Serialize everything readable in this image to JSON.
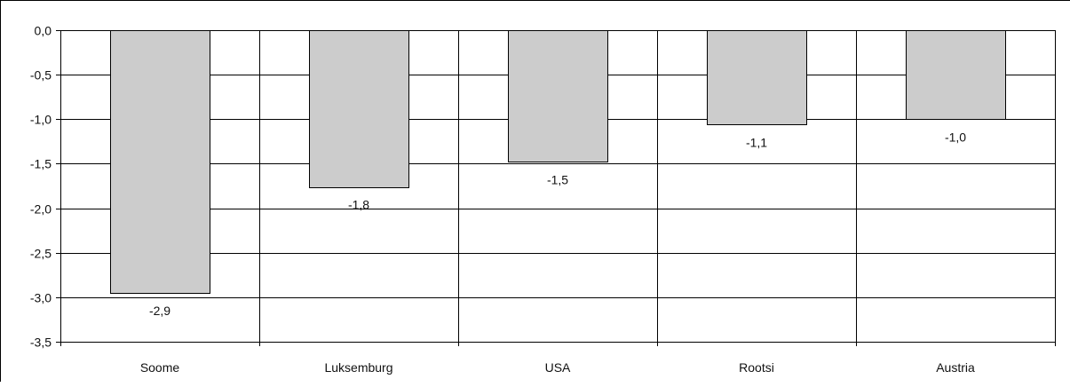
{
  "chart_data": {
    "type": "bar",
    "title": "",
    "xlabel": "",
    "ylabel": "",
    "categories": [
      "Soome",
      "Luksemburg",
      "USA",
      "Rootsi",
      "Austria"
    ],
    "values": [
      -2.95,
      -1.76,
      -1.48,
      -1.06,
      -1.0
    ],
    "data_labels": [
      "-2,9",
      "-1,8",
      "-1,5",
      "-1,1",
      "-1,0"
    ],
    "yticks": [
      0,
      -0.5,
      -1,
      -1.5,
      -2,
      -2.5,
      -3,
      -3.5
    ],
    "ytick_labels": [
      "0,0",
      "-0,5",
      "-1,0",
      "-1,5",
      "-2,0",
      "-2,5",
      "-3,0",
      "-3,5"
    ],
    "ylim": [
      -3.5,
      0
    ],
    "grid": true,
    "legend": "none",
    "colors": {
      "bar_fill": "#cccccc",
      "bar_stroke": "#000000",
      "grid": "#000000"
    }
  }
}
